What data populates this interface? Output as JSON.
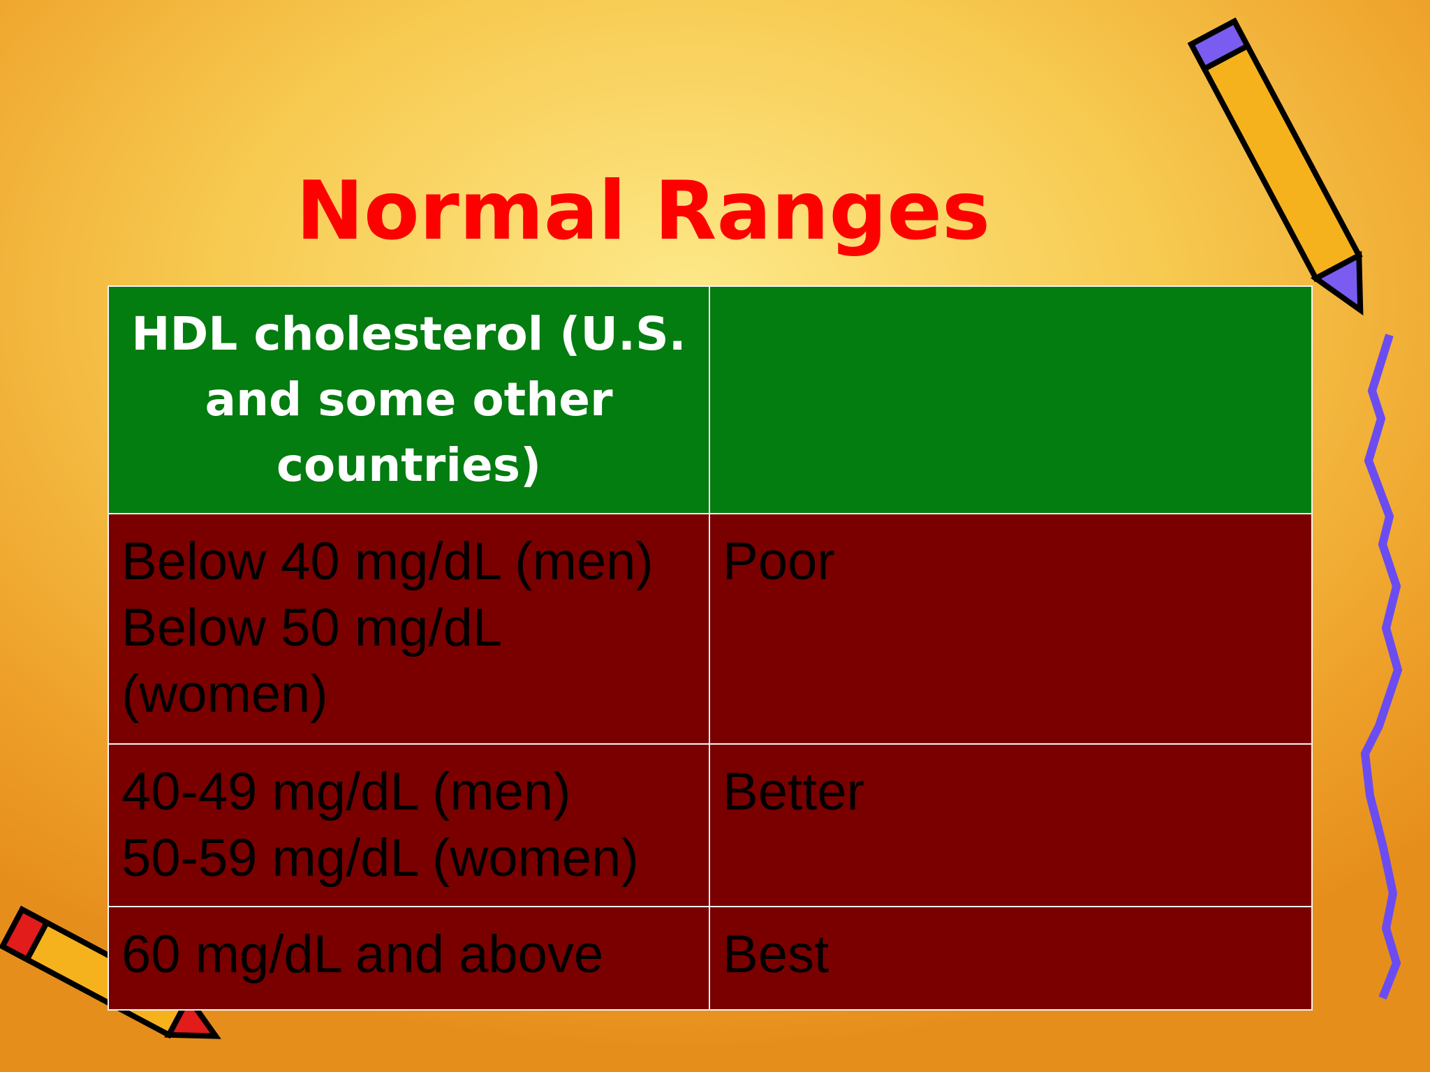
{
  "title": "Normal Ranges",
  "table": {
    "header": [
      "HDL cholesterol (U.S. and some other countries)"
    ],
    "rows": [
      [
        [
          "Below 40 mg/dL (men)",
          "Below 50 mg/dL (women)"
        ],
        [
          "Poor"
        ]
      ],
      [
        [
          "40-49 mg/dL (men)",
          "50-59 mg/dL (women)"
        ],
        [
          "Better"
        ]
      ],
      [
        [
          "60 mg/dL and above"
        ],
        [
          "Best"
        ]
      ]
    ]
  }
}
